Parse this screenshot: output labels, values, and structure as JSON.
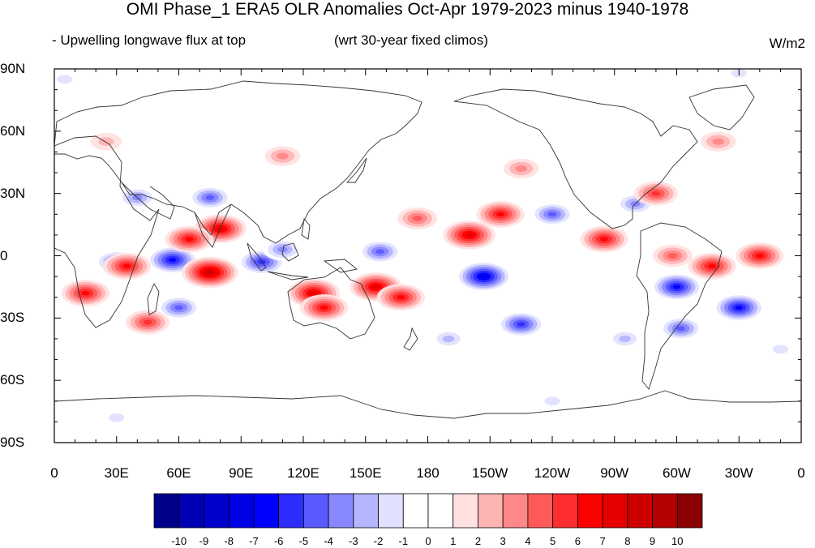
{
  "title": "OMI Phase_1 ERA5 OLR Anomalies Oct-Apr 1979-2023 minus 1940-1978",
  "left_subtitle": "- Upwelling longwave flux at top",
  "center_subtitle": "(wrt 30-year fixed climos)",
  "units": "W/m2",
  "lat_labels": [
    "90N",
    "60N",
    "30N",
    "0",
    "30S",
    "60S",
    "90S"
  ],
  "lon_labels": [
    "0",
    "30E",
    "60E",
    "90E",
    "120E",
    "150E",
    "180",
    "150W",
    "120W",
    "90W",
    "60W",
    "30W",
    "0"
  ],
  "colorbar": {
    "labels": [
      "-10",
      "-9",
      "-8",
      "-7",
      "-6",
      "-5",
      "-4",
      "-3",
      "-2",
      "-1",
      "0",
      "1",
      "2",
      "3",
      "4",
      "5",
      "6",
      "7",
      "8",
      "9",
      "10"
    ],
    "colors": [
      "#00008b",
      "#0000b4",
      "#0000cd",
      "#0000e6",
      "#0000ff",
      "#2d2dff",
      "#5a5aff",
      "#8787ff",
      "#b4b4ff",
      "#e1e1ff",
      "#ffffff",
      "#ffffff",
      "#ffe1e1",
      "#ffb4b4",
      "#ff8787",
      "#ff5a5a",
      "#ff2d2d",
      "#ff0000",
      "#e60000",
      "#cd0000",
      "#b40000",
      "#8b0000"
    ]
  },
  "chart_data": {
    "type": "heatmap",
    "variable": "OLR anomaly",
    "xlim": [
      0,
      360
    ],
    "ylim": [
      -90,
      90
    ],
    "x_ticks": [
      "0",
      "30E",
      "60E",
      "90E",
      "120E",
      "150E",
      "180",
      "150W",
      "120W",
      "90W",
      "60W",
      "30W",
      "0"
    ],
    "y_ticks": [
      "90N",
      "60N",
      "30N",
      "0",
      "30S",
      "60S",
      "90S"
    ],
    "levels": [
      -10,
      -9,
      -8,
      -7,
      -6,
      -5,
      -4,
      -3,
      -2,
      -1,
      0,
      1,
      2,
      3,
      4,
      5,
      6,
      7,
      8,
      9,
      10
    ],
    "features": [
      {
        "lon": 57,
        "lat": -2,
        "value": -7
      },
      {
        "lon": 40,
        "lat": 28,
        "value": -4
      },
      {
        "lon": 75,
        "lat": 28,
        "value": -5
      },
      {
        "lon": 30,
        "lat": -3,
        "value": -5
      },
      {
        "lon": 60,
        "lat": -25,
        "value": -5
      },
      {
        "lon": 100,
        "lat": -3,
        "value": -6
      },
      {
        "lon": 110,
        "lat": 3,
        "value": -4
      },
      {
        "lon": 157,
        "lat": 2,
        "value": -5
      },
      {
        "lon": 207,
        "lat": -10,
        "value": -8
      },
      {
        "lon": 225,
        "lat": -33,
        "value": -6
      },
      {
        "lon": 240,
        "lat": 20,
        "value": -5
      },
      {
        "lon": 280,
        "lat": 25,
        "value": -4
      },
      {
        "lon": 300,
        "lat": -15,
        "value": -7
      },
      {
        "lon": 330,
        "lat": -25,
        "value": -7
      },
      {
        "lon": 302,
        "lat": -35,
        "value": -5
      },
      {
        "lon": 80,
        "lat": 13,
        "value": 7
      },
      {
        "lon": 65,
        "lat": 8,
        "value": 6
      },
      {
        "lon": 75,
        "lat": -8,
        "value": 8
      },
      {
        "lon": 35,
        "lat": -5,
        "value": 6
      },
      {
        "lon": 15,
        "lat": -18,
        "value": 6
      },
      {
        "lon": 45,
        "lat": -32,
        "value": 5
      },
      {
        "lon": 125,
        "lat": -18,
        "value": 7
      },
      {
        "lon": 130,
        "lat": -25,
        "value": 6
      },
      {
        "lon": 155,
        "lat": -15,
        "value": 7
      },
      {
        "lon": 167,
        "lat": -20,
        "value": 6
      },
      {
        "lon": 200,
        "lat": 10,
        "value": 7
      },
      {
        "lon": 215,
        "lat": 20,
        "value": 6
      },
      {
        "lon": 175,
        "lat": 18,
        "value": 4
      },
      {
        "lon": 225,
        "lat": 42,
        "value": 3
      },
      {
        "lon": 265,
        "lat": 8,
        "value": 6
      },
      {
        "lon": 290,
        "lat": 30,
        "value": 5
      },
      {
        "lon": 317,
        "lat": -5,
        "value": 6
      },
      {
        "lon": 340,
        "lat": 0,
        "value": 6
      },
      {
        "lon": 298,
        "lat": 0,
        "value": 4
      },
      {
        "lon": 110,
        "lat": 48,
        "value": 3
      },
      {
        "lon": 25,
        "lat": 55,
        "value": 2
      },
      {
        "lon": 320,
        "lat": 55,
        "value": 3
      },
      {
        "lon": 190,
        "lat": -40,
        "value": -3
      },
      {
        "lon": 275,
        "lat": -40,
        "value": -3
      },
      {
        "lon": 5,
        "lat": 85,
        "value": -2
      },
      {
        "lon": 330,
        "lat": 88,
        "value": -2
      },
      {
        "lon": 240,
        "lat": -70,
        "value": -2
      },
      {
        "lon": 30,
        "lat": -78,
        "value": -2
      },
      {
        "lon": 350,
        "lat": -45,
        "value": -2
      }
    ]
  }
}
